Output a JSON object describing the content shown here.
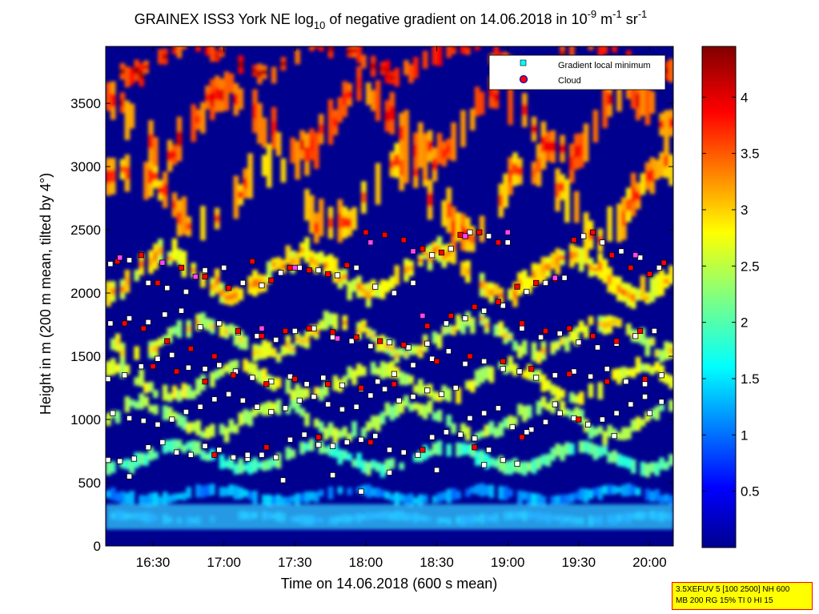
{
  "title": {
    "prefix": "GRAINEX ISS3 York NE log",
    "log_base": "10",
    "middle": " of negative gradient on 14.06.2018 in 10",
    "exp1": "-9",
    "unit1": " m",
    "exp2": "-1",
    "unit2": " sr",
    "exp3": "-1"
  },
  "info_box": {
    "line1": "3.5XEFUV 5 [100 2500] NH 600",
    "line2": "MB 200 RG 15% TI 0 HI 15"
  },
  "chart_data": {
    "type": "heatmap",
    "xlabel": "Time on 14.06.2018 (600 s mean)",
    "ylabel": "Height in m (200 m mean, tilted by 4°)",
    "xlim": [
      "16:10",
      "20:10"
    ],
    "ylim": [
      0,
      3950
    ],
    "x_ticks": [
      "16:30",
      "17:00",
      "17:30",
      "18:00",
      "18:30",
      "19:00",
      "19:30",
      "20:00"
    ],
    "x_tick_minutes": [
      990,
      1020,
      1050,
      1080,
      1110,
      1140,
      1170,
      1200
    ],
    "x_range_minutes": [
      970,
      1210
    ],
    "y_ticks": [
      0,
      500,
      1000,
      1500,
      2000,
      2500,
      3000,
      3500
    ],
    "colorbar": {
      "range": [
        0,
        4.45
      ],
      "ticks": [
        0.5,
        1,
        1.5,
        2,
        2.5,
        3,
        3.5,
        4
      ],
      "tick_labels": [
        "0.5",
        "1",
        "1.5",
        "2",
        "2.5",
        "3",
        "3.5",
        "4"
      ],
      "colormap": "jet"
    },
    "legend": {
      "placement": "top-right",
      "entries": [
        {
          "label": "Gradient local minimum",
          "marker": "square",
          "color": "#00ffff"
        },
        {
          "label": "Cloud",
          "marker": "circle",
          "color": "#ff0000"
        }
      ]
    },
    "layers": [
      {
        "name": "Gradient local minimum",
        "color": "#ffffff",
        "points": [
          [
            971,
            1320
          ],
          [
            978,
            1350
          ],
          [
            985,
            1420
          ],
          [
            992,
            1480
          ],
          [
            998,
            1510
          ],
          [
            1005,
            1410
          ],
          [
            1012,
            1400
          ],
          [
            1018,
            1430
          ],
          [
            1025,
            1380
          ],
          [
            1032,
            1330
          ],
          [
            1040,
            1300
          ],
          [
            1048,
            1340
          ],
          [
            1055,
            1280
          ],
          [
            1062,
            1330
          ],
          [
            1070,
            1270
          ],
          [
            1078,
            1240
          ],
          [
            1085,
            1300
          ],
          [
            1092,
            1360
          ],
          [
            1100,
            1430
          ],
          [
            1108,
            1480
          ],
          [
            1115,
            1540
          ],
          [
            1122,
            1440
          ],
          [
            1130,
            1460
          ],
          [
            1138,
            1400
          ],
          [
            1145,
            1380
          ],
          [
            1152,
            1330
          ],
          [
            1160,
            1350
          ],
          [
            1168,
            1380
          ],
          [
            1175,
            1340
          ],
          [
            1182,
            1400
          ],
          [
            1190,
            1300
          ],
          [
            1198,
            1280
          ],
          [
            1205,
            1350
          ],
          [
            971,
            680
          ],
          [
            976,
            670
          ],
          [
            982,
            690
          ],
          [
            988,
            780
          ],
          [
            994,
            820
          ],
          [
            1000,
            740
          ],
          [
            1006,
            720
          ],
          [
            1012,
            790
          ],
          [
            1018,
            760
          ],
          [
            1024,
            700
          ],
          [
            1030,
            690
          ],
          [
            1036,
            720
          ],
          [
            1042,
            700
          ],
          [
            1048,
            840
          ],
          [
            1054,
            880
          ],
          [
            1060,
            800
          ],
          [
            1066,
            790
          ],
          [
            1072,
            820
          ],
          [
            1078,
            840
          ],
          [
            1084,
            870
          ],
          [
            1090,
            760
          ],
          [
            1096,
            740
          ],
          [
            1102,
            720
          ],
          [
            1108,
            860
          ],
          [
            1114,
            900
          ],
          [
            1120,
            880
          ],
          [
            1126,
            850
          ],
          [
            1132,
            760
          ],
          [
            1138,
            680
          ],
          [
            1144,
            650
          ],
          [
            1150,
            920
          ],
          [
            1156,
            980
          ],
          [
            1162,
            1050
          ],
          [
            1168,
            1010
          ],
          [
            1174,
            960
          ],
          [
            1180,
            1000
          ],
          [
            1186,
            1050
          ],
          [
            1192,
            1120
          ],
          [
            1198,
            1180
          ],
          [
            1205,
            1140
          ],
          [
            973,
            1050
          ],
          [
            980,
            1010
          ],
          [
            986,
            990
          ],
          [
            992,
            960
          ],
          [
            998,
            1000
          ],
          [
            1004,
            1060
          ],
          [
            1010,
            1100
          ],
          [
            1016,
            1160
          ],
          [
            1022,
            1200
          ],
          [
            1028,
            1150
          ],
          [
            1034,
            1100
          ],
          [
            1040,
            1060
          ],
          [
            1046,
            1090
          ],
          [
            1052,
            1150
          ],
          [
            1058,
            1180
          ],
          [
            1064,
            1120
          ],
          [
            1070,
            1080
          ],
          [
            1076,
            1100
          ],
          [
            1082,
            1190
          ],
          [
            1088,
            1240
          ],
          [
            1094,
            1150
          ],
          [
            1100,
            1180
          ],
          [
            1106,
            1230
          ],
          [
            1112,
            1200
          ],
          [
            1118,
            1250
          ],
          [
            1124,
            1010
          ],
          [
            1130,
            1050
          ],
          [
            1136,
            1090
          ],
          [
            1142,
            940
          ],
          [
            1148,
            900
          ],
          [
            972,
            1760
          ],
          [
            980,
            1800
          ],
          [
            988,
            1770
          ],
          [
            995,
            1830
          ],
          [
            1002,
            1860
          ],
          [
            1010,
            1730
          ],
          [
            1018,
            1760
          ],
          [
            1026,
            1690
          ],
          [
            1034,
            1660
          ],
          [
            1042,
            1630
          ],
          [
            1050,
            1700
          ],
          [
            1058,
            1720
          ],
          [
            1066,
            1650
          ],
          [
            1074,
            1620
          ],
          [
            1082,
            1580
          ],
          [
            1090,
            1610
          ],
          [
            1098,
            1570
          ],
          [
            1106,
            1600
          ],
          [
            1114,
            1760
          ],
          [
            1122,
            1800
          ],
          [
            1130,
            1860
          ],
          [
            1138,
            1900
          ],
          [
            1146,
            1720
          ],
          [
            1154,
            1650
          ],
          [
            1162,
            1680
          ],
          [
            1170,
            1610
          ],
          [
            1178,
            1570
          ],
          [
            1186,
            1600
          ],
          [
            1194,
            1660
          ],
          [
            1202,
            1700
          ],
          [
            972,
            2230
          ],
          [
            980,
            2260
          ],
          [
            988,
            2080
          ],
          [
            996,
            2040
          ],
          [
            1004,
            2010
          ],
          [
            1012,
            2180
          ],
          [
            1020,
            2200
          ],
          [
            1028,
            2080
          ],
          [
            1036,
            2060
          ],
          [
            1044,
            2160
          ],
          [
            1052,
            2200
          ],
          [
            1060,
            2180
          ],
          [
            1068,
            2140
          ],
          [
            1076,
            2200
          ],
          [
            1084,
            2050
          ],
          [
            1092,
            2000
          ],
          [
            1100,
            2080
          ],
          [
            1108,
            2300
          ],
          [
            1116,
            2350
          ],
          [
            1124,
            2480
          ],
          [
            1132,
            2450
          ],
          [
            1140,
            2400
          ],
          [
            1148,
            2010
          ],
          [
            1156,
            2080
          ],
          [
            1164,
            2120
          ],
          [
            1172,
            2450
          ],
          [
            1180,
            2400
          ],
          [
            1188,
            2330
          ],
          [
            1196,
            2280
          ],
          [
            1204,
            2200
          ],
          [
            980,
            550
          ],
          [
            1030,
            720
          ],
          [
            1045,
            520
          ],
          [
            1066,
            560
          ],
          [
            1078,
            430
          ],
          [
            1090,
            580
          ],
          [
            1110,
            600
          ],
          [
            1130,
            640
          ],
          [
            1160,
            1120
          ],
          [
            1185,
            870
          ],
          [
            1200,
            1050
          ]
        ]
      },
      {
        "name": "Cloud",
        "color": "#ff0000",
        "points": [
          [
            975,
            2250
          ],
          [
            985,
            2300
          ],
          [
            992,
            2080
          ],
          [
            1002,
            2200
          ],
          [
            1012,
            2130
          ],
          [
            1022,
            2040
          ],
          [
            1032,
            2250
          ],
          [
            1040,
            2100
          ],
          [
            1048,
            2200
          ],
          [
            1056,
            2180
          ],
          [
            1064,
            2150
          ],
          [
            1072,
            2220
          ],
          [
            1080,
            2480
          ],
          [
            1088,
            2460
          ],
          [
            1096,
            2420
          ],
          [
            1104,
            2350
          ],
          [
            1112,
            2320
          ],
          [
            1120,
            2460
          ],
          [
            1128,
            2480
          ],
          [
            1136,
            2400
          ],
          [
            1144,
            2050
          ],
          [
            1152,
            2080
          ],
          [
            1160,
            2110
          ],
          [
            1168,
            2420
          ],
          [
            1176,
            2480
          ],
          [
            1184,
            2300
          ],
          [
            1192,
            2200
          ],
          [
            1200,
            2150
          ],
          [
            1206,
            2240
          ],
          [
            978,
            1760
          ],
          [
            986,
            1720
          ],
          [
            996,
            1620
          ],
          [
            1006,
            1560
          ],
          [
            1016,
            1500
          ],
          [
            1026,
            1700
          ],
          [
            1036,
            1660
          ],
          [
            1046,
            1700
          ],
          [
            1056,
            1720
          ],
          [
            1066,
            1690
          ],
          [
            1076,
            1650
          ],
          [
            1086,
            1620
          ],
          [
            1096,
            1590
          ],
          [
            1106,
            1740
          ],
          [
            1116,
            1820
          ],
          [
            1126,
            1890
          ],
          [
            1136,
            1930
          ],
          [
            1146,
            1760
          ],
          [
            1156,
            1700
          ],
          [
            1166,
            1720
          ],
          [
            1176,
            1660
          ],
          [
            1186,
            1620
          ],
          [
            1196,
            1700
          ],
          [
            990,
            1420
          ],
          [
            1000,
            1380
          ],
          [
            1012,
            1300
          ],
          [
            1024,
            1350
          ],
          [
            1038,
            1280
          ],
          [
            1050,
            1320
          ],
          [
            1064,
            1280
          ],
          [
            1078,
            1250
          ],
          [
            1092,
            1280
          ],
          [
            1110,
            1460
          ],
          [
            1124,
            1500
          ],
          [
            1138,
            1460
          ],
          [
            1150,
            1400
          ],
          [
            1166,
            1360
          ],
          [
            1182,
            1300
          ],
          [
            1198,
            1320
          ],
          [
            1016,
            720
          ],
          [
            1038,
            780
          ],
          [
            1060,
            860
          ],
          [
            1082,
            820
          ],
          [
            1104,
            760
          ],
          [
            1126,
            780
          ],
          [
            1146,
            860
          ],
          [
            1170,
            1000
          ]
        ]
      },
      {
        "name": "Gradient local minimum (magenta)",
        "color": "#ff44ff",
        "points": [
          [
            976,
            2280
          ],
          [
            994,
            2240
          ],
          [
            1008,
            2130
          ],
          [
            1050,
            2200
          ],
          [
            1082,
            2400
          ],
          [
            1100,
            2330
          ],
          [
            1122,
            2450
          ],
          [
            1140,
            2480
          ],
          [
            1160,
            2120
          ],
          [
            1194,
            2300
          ],
          [
            1036,
            1720
          ],
          [
            1068,
            1640
          ],
          [
            1104,
            1820
          ]
        ]
      }
    ]
  }
}
